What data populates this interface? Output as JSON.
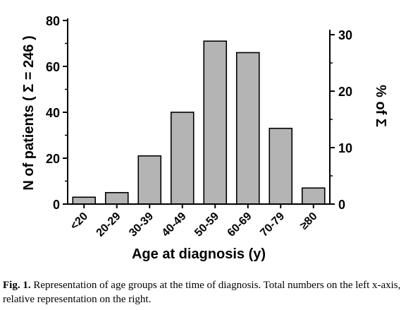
{
  "chart_data": {
    "type": "bar",
    "categories": [
      "<20",
      "20-29",
      "30-39",
      "40-49",
      "50-59",
      "60-69",
      "70-79",
      "≥80"
    ],
    "values": [
      3,
      5,
      21,
      40,
      71,
      66,
      33,
      7
    ],
    "xlabel": "Age at diagnosis (y)",
    "ylabel": "N of patients ( Σ = 246 )",
    "ylabel_right": "% of Σ",
    "ylim": [
      0,
      80
    ],
    "yticks": [
      0,
      20,
      40,
      60,
      80
    ],
    "ylim_right": [
      0,
      32.52
    ],
    "yticks_right": [
      0,
      10,
      20,
      30
    ],
    "bar_color": "#b4b4b4",
    "grid": false,
    "legend": "none"
  },
  "caption": {
    "label": "Fig. 1.",
    "text": "Representation of age groups at the time of diagnosis. Total numbers on the left x-axis, relative representation on the right."
  }
}
